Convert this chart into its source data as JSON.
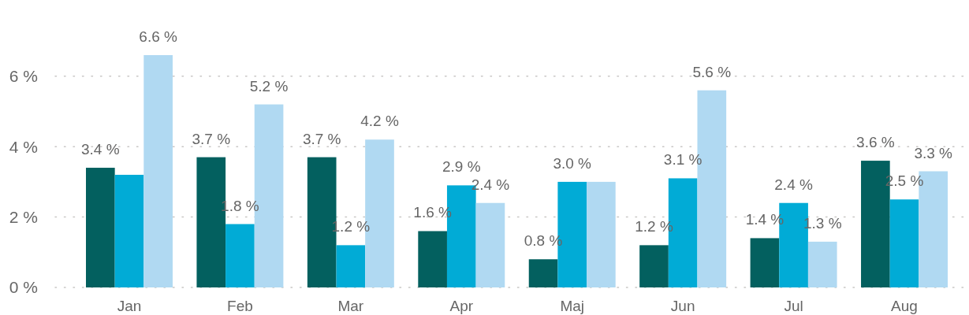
{
  "chart_data": {
    "type": "bar",
    "categories": [
      "Jan",
      "Feb",
      "Mar",
      "Apr",
      "Maj",
      "Jun",
      "Jul",
      "Aug"
    ],
    "series": [
      {
        "color": "#03605f",
        "values": [
          3.4,
          3.7,
          3.7,
          1.6,
          0.8,
          1.2,
          1.4,
          3.6
        ],
        "value_labels": [
          "3.4 %",
          "3.7 %",
          "3.7 %",
          "1.6 %",
          "0.8 %",
          "1.2 %",
          "1.4 %",
          "3.6 %"
        ]
      },
      {
        "color": "#01abd6",
        "values": [
          3.2,
          1.8,
          1.2,
          2.9,
          3.0,
          3.1,
          2.4,
          2.5
        ],
        "value_labels": [
          null,
          "1.8 %",
          "1.2 %",
          "2.9 %",
          "3.0 %",
          "3.1 %",
          "2.4 %",
          "2.5 %"
        ]
      },
      {
        "color": "#b0d9f2",
        "values": [
          6.6,
          5.2,
          4.2,
          2.4,
          3.0,
          5.6,
          1.3,
          3.3
        ],
        "value_labels": [
          "6.6 %",
          "5.2 %",
          "4.2 %",
          "2.4 %",
          null,
          "5.6 %",
          "1.3 %",
          "3.3 %"
        ]
      }
    ],
    "ylim": [
      0,
      6.6
    ],
    "yticks": [
      {
        "value": 0,
        "label": "0 %"
      },
      {
        "value": 2,
        "label": "2 %"
      },
      {
        "value": 4,
        "label": "4 %"
      },
      {
        "value": 6,
        "label": "6 %"
      }
    ],
    "grid": "y"
  }
}
